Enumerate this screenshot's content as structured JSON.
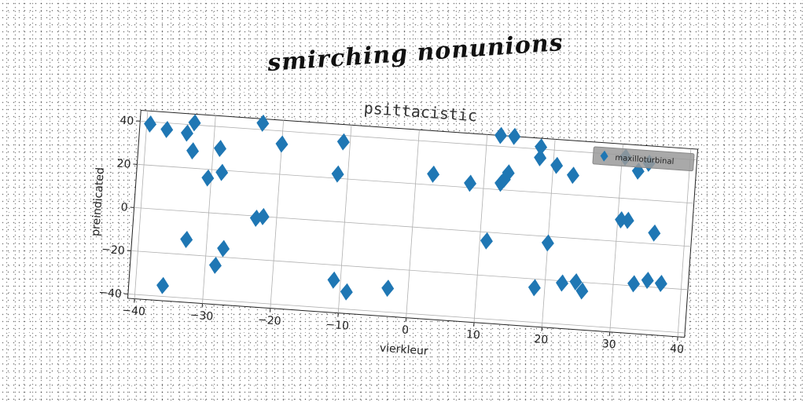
{
  "figure": {
    "suptitle": "smirching nonunions"
  },
  "chart_data": {
    "type": "scatter",
    "title": "psittacistic",
    "xlabel": "vierkleur",
    "ylabel": "preindicated",
    "xlim": [
      -41,
      41
    ],
    "ylim": [
      -42,
      45
    ],
    "xticks": [
      -40,
      -30,
      -20,
      -10,
      0,
      10,
      20,
      30,
      40
    ],
    "yticks": [
      -40,
      -20,
      0,
      20,
      40
    ],
    "grid": true,
    "legend_position": "top-right",
    "marker": "diamond",
    "series": [
      {
        "name": "maxilloturbinal",
        "color": "#1f77b4",
        "points": [
          [
            -39.5,
            39
          ],
          [
            -37,
            37
          ],
          [
            -34,
            36
          ],
          [
            -33,
            41
          ],
          [
            -33,
            28
          ],
          [
            -29,
            30
          ],
          [
            -30.5,
            16
          ],
          [
            -28.5,
            19
          ],
          [
            -33,
            -13
          ],
          [
            -28.5,
            -24
          ],
          [
            -27.5,
            -16
          ],
          [
            -36,
            -35
          ],
          [
            -23,
            43
          ],
          [
            -20,
            34
          ],
          [
            -23,
            -1
          ],
          [
            -22,
            0
          ],
          [
            -11,
            37
          ],
          [
            -11.5,
            22
          ],
          [
            -11,
            -27
          ],
          [
            -9,
            -32
          ],
          [
            -3,
            -29
          ],
          [
            2.5,
            25
          ],
          [
            8,
            22
          ],
          [
            12,
            45
          ],
          [
            14,
            45
          ],
          [
            12.5,
            23
          ],
          [
            13,
            25
          ],
          [
            13.5,
            28
          ],
          [
            11,
            -4
          ],
          [
            18,
            41
          ],
          [
            18,
            36
          ],
          [
            20.5,
            33
          ],
          [
            23,
            29
          ],
          [
            18.5,
            -24
          ],
          [
            20,
            -3
          ],
          [
            22.5,
            -21
          ],
          [
            24.5,
            -20
          ],
          [
            25.5,
            -24
          ],
          [
            30.5,
            39
          ],
          [
            32.5,
            33
          ],
          [
            34,
            37
          ],
          [
            30.5,
            10
          ],
          [
            31.5,
            10
          ],
          [
            35.5,
            5
          ],
          [
            33,
            -19
          ],
          [
            35,
            -17
          ],
          [
            37,
            -18
          ]
        ]
      }
    ]
  }
}
